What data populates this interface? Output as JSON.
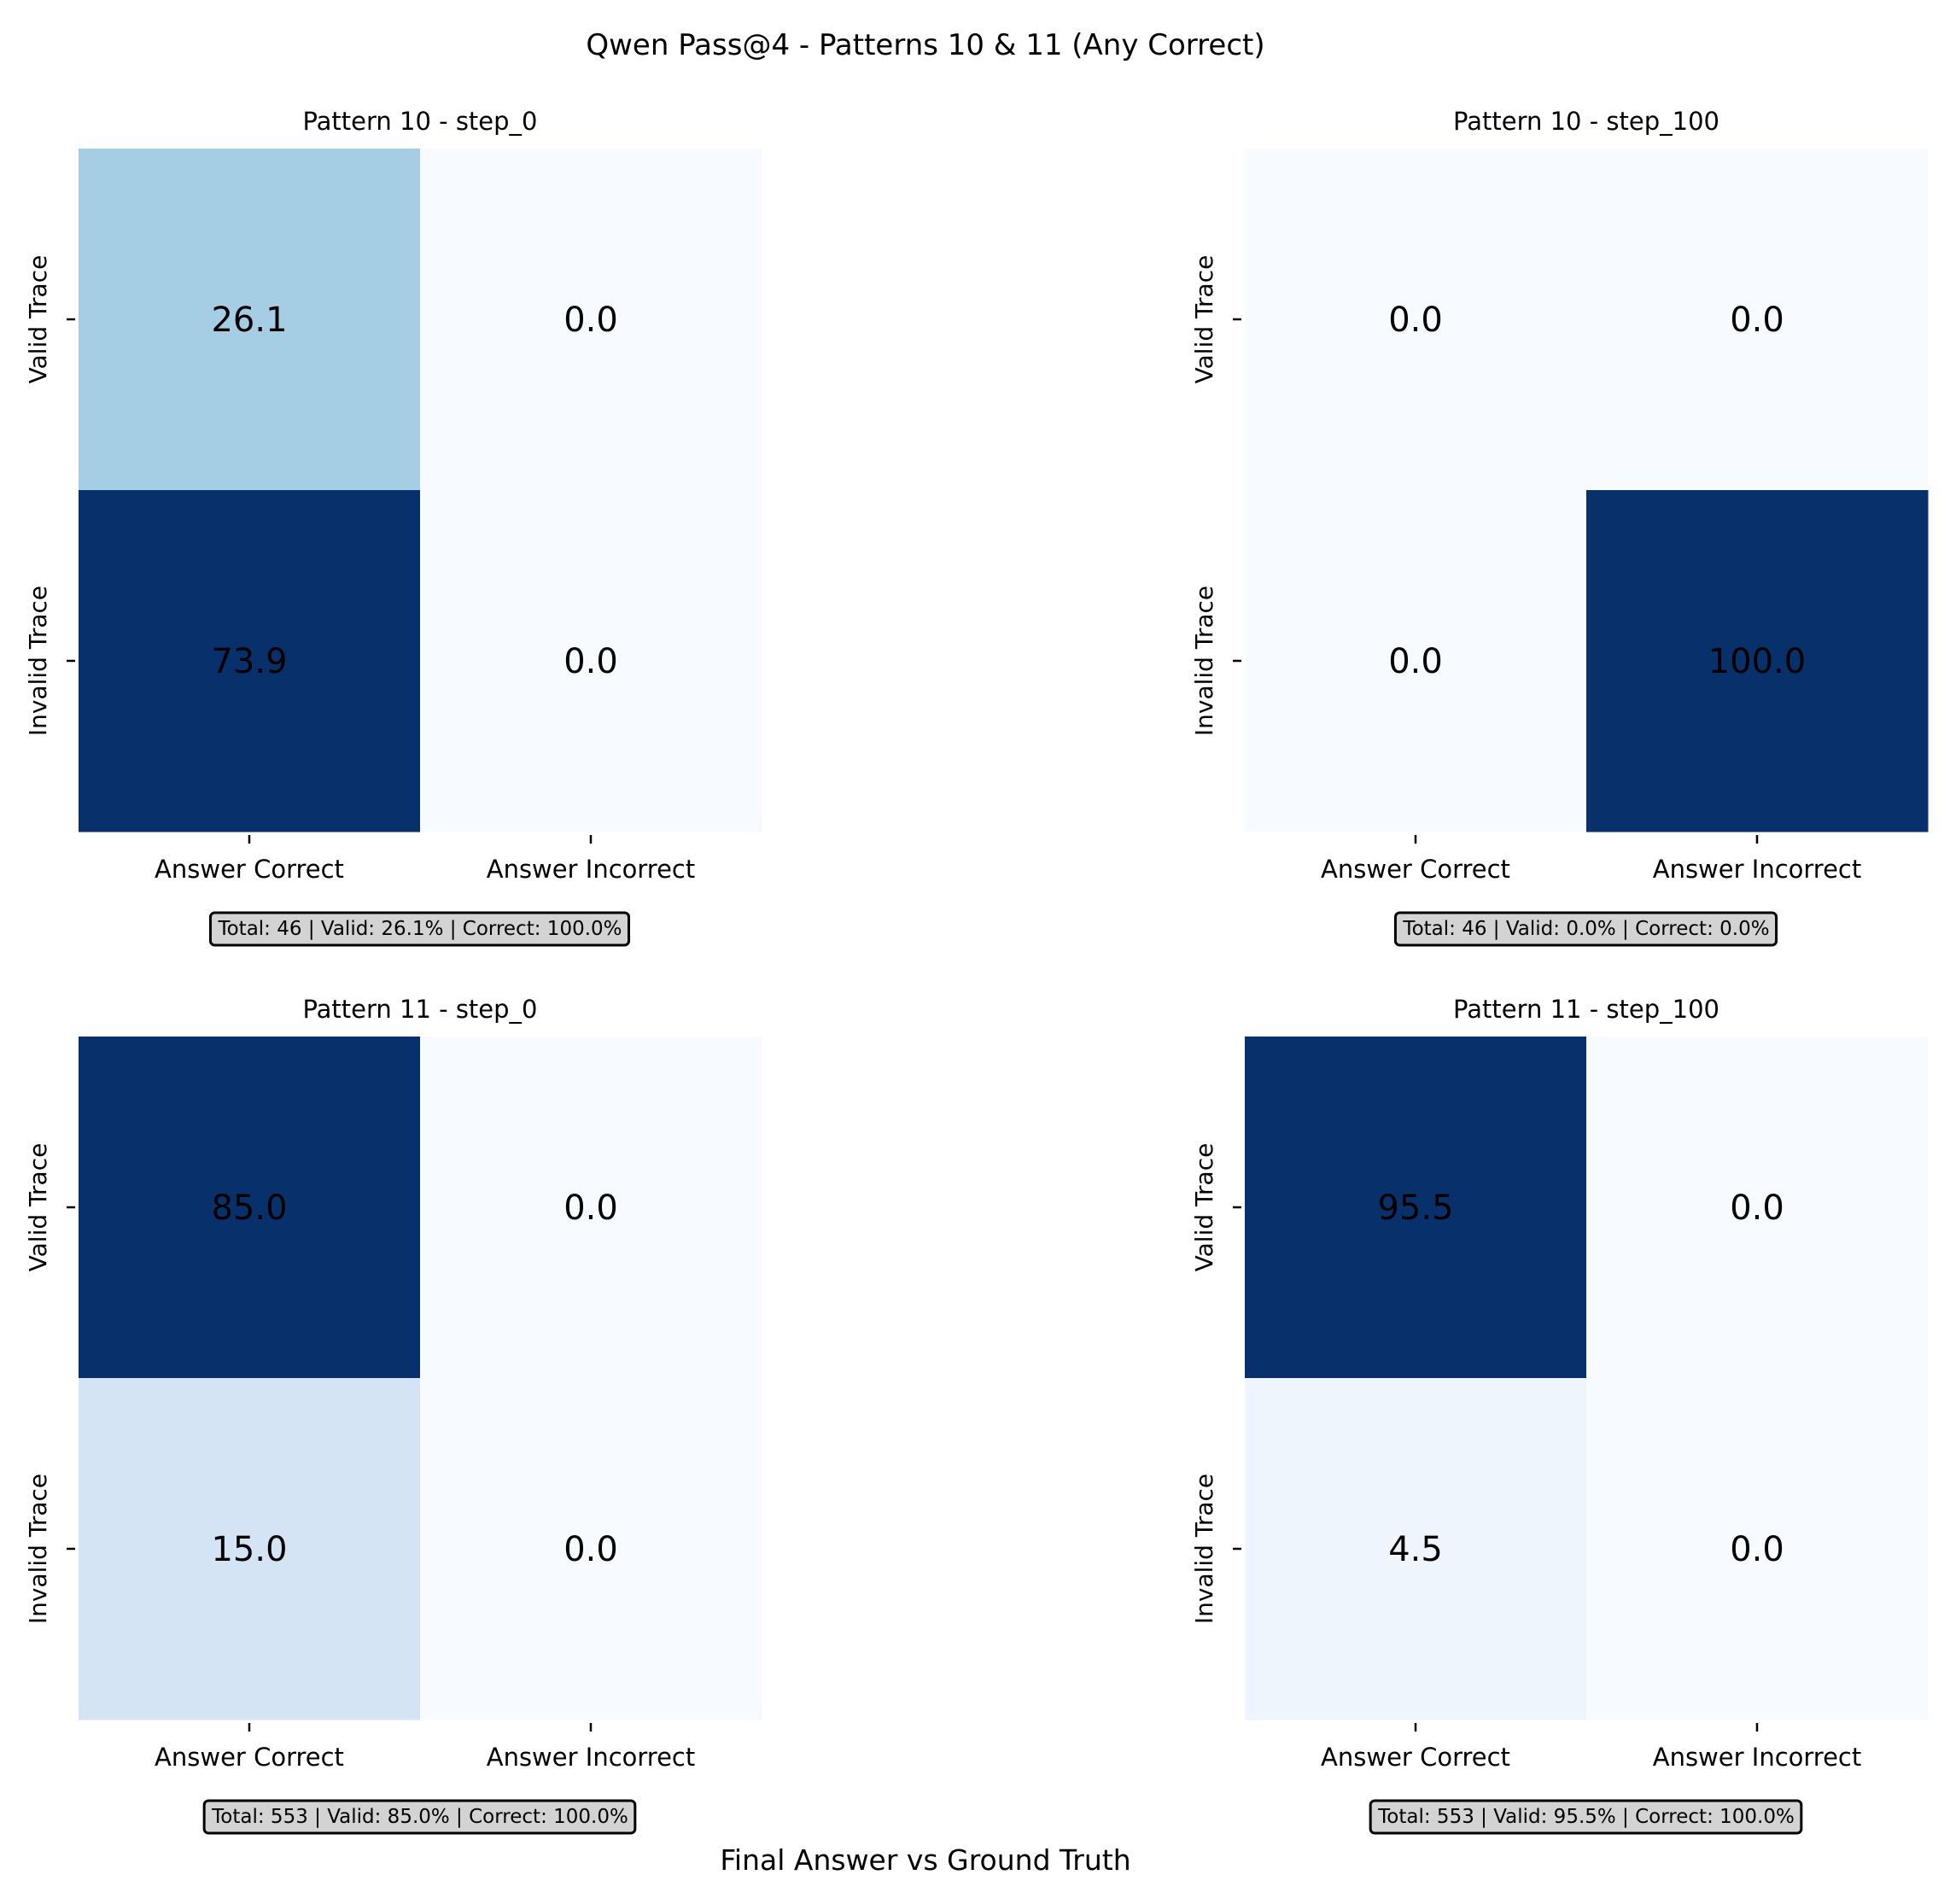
{
  "suptitle": "Qwen Pass@4 - Patterns 10 & 11 (Any Correct)",
  "supxlabel": "Final Answer vs Ground Truth",
  "colormap": "Blues",
  "text_dark": "#262626",
  "text_light": "#ffffff",
  "stats_box_fill": "#d3d3d3",
  "chart_data": [
    {
      "type": "heatmap",
      "title": "Pattern 10 - step_0",
      "row_labels": [
        "Valid Trace",
        "Invalid Trace"
      ],
      "col_labels": [
        "Answer Correct",
        "Answer Incorrect"
      ],
      "values": [
        [
          26.1,
          0.0
        ],
        [
          73.9,
          0.0
        ]
      ],
      "value_labels": [
        [
          "26.1",
          "0.0"
        ],
        [
          "73.9",
          "0.0"
        ]
      ],
      "stats": "Total: 46 | Valid: 26.1% | Correct: 100.0%"
    },
    {
      "type": "heatmap",
      "title": "Pattern 10 - step_100",
      "row_labels": [
        "Valid Trace",
        "Invalid Trace"
      ],
      "col_labels": [
        "Answer Correct",
        "Answer Incorrect"
      ],
      "values": [
        [
          0.0,
          0.0
        ],
        [
          0.0,
          100.0
        ]
      ],
      "value_labels": [
        [
          "0.0",
          "0.0"
        ],
        [
          "0.0",
          "100.0"
        ]
      ],
      "stats": "Total: 46 | Valid: 0.0% | Correct: 0.0%"
    },
    {
      "type": "heatmap",
      "title": "Pattern 11 - step_0",
      "row_labels": [
        "Valid Trace",
        "Invalid Trace"
      ],
      "col_labels": [
        "Answer Correct",
        "Answer Incorrect"
      ],
      "values": [
        [
          85.0,
          0.0
        ],
        [
          15.0,
          0.0
        ]
      ],
      "value_labels": [
        [
          "85.0",
          "0.0"
        ],
        [
          "15.0",
          "0.0"
        ]
      ],
      "stats": "Total: 553 | Valid: 85.0% | Correct: 100.0%"
    },
    {
      "type": "heatmap",
      "title": "Pattern 11 - step_100",
      "row_labels": [
        "Valid Trace",
        "Invalid Trace"
      ],
      "col_labels": [
        "Answer Correct",
        "Answer Incorrect"
      ],
      "values": [
        [
          95.5,
          0.0
        ],
        [
          4.5,
          0.0
        ]
      ],
      "value_labels": [
        [
          "95.5",
          "0.0"
        ],
        [
          "4.5",
          "0.0"
        ]
      ],
      "stats": "Total: 553 | Valid: 95.5% | Correct: 100.0%"
    }
  ]
}
